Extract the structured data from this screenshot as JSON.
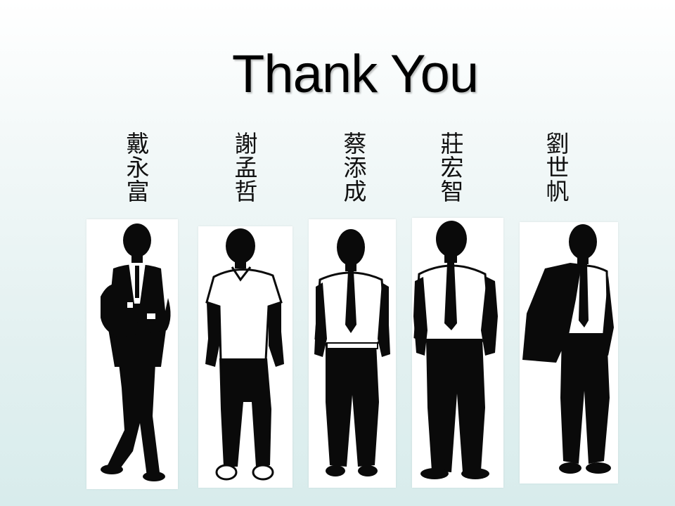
{
  "slide": {
    "title": "Thank You"
  },
  "people": [
    {
      "name_chars": [
        "戴",
        "永",
        "富"
      ],
      "figure_icon": "man-in-suit-arms-crossed-silhouette"
    },
    {
      "name_chars": [
        "謝",
        "孟",
        "哲"
      ],
      "figure_icon": "man-in-polo-shirt-silhouette"
    },
    {
      "name_chars": [
        "蔡",
        "添",
        "成"
      ],
      "figure_icon": "man-with-tie-silhouette"
    },
    {
      "name_chars": [
        "莊",
        "宏",
        "智"
      ],
      "figure_icon": "man-with-tie-hands-in-pockets-silhouette"
    },
    {
      "name_chars": [
        "劉",
        "世",
        "帆"
      ],
      "figure_icon": "man-holding-jacket-silhouette"
    }
  ],
  "colors": {
    "silhouette": "#0a0a0a",
    "shirt": "#ffffff",
    "title": "#000000"
  }
}
